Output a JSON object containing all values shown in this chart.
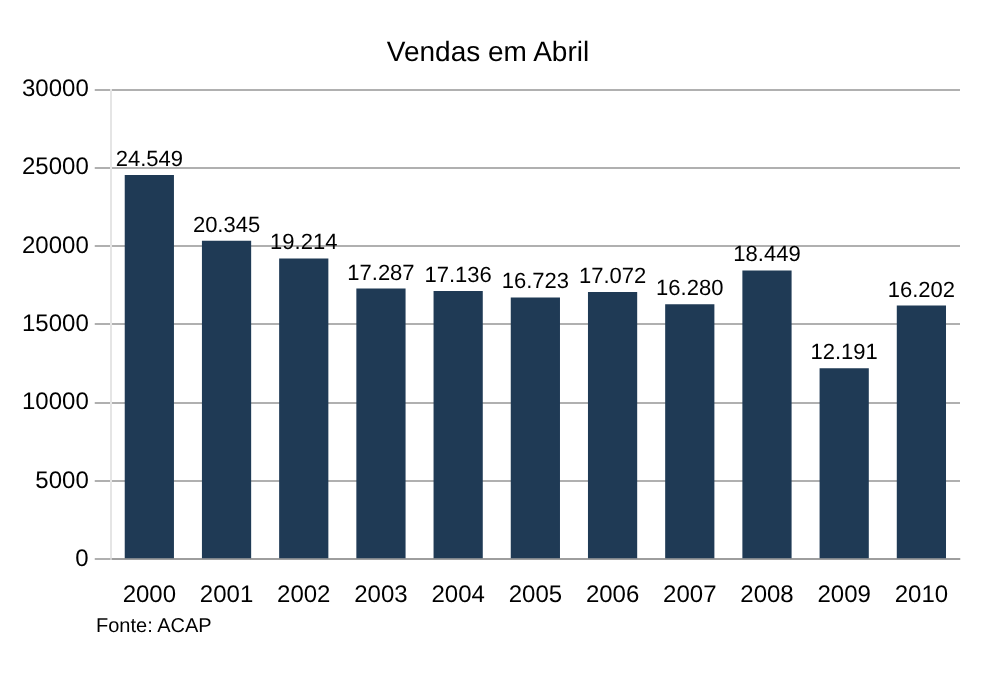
{
  "chart_data": {
    "type": "bar",
    "title": "Vendas em Abril",
    "categories": [
      "2000",
      "2001",
      "2002",
      "2003",
      "2004",
      "2005",
      "2006",
      "2007",
      "2008",
      "2009",
      "2010"
    ],
    "values": [
      24549,
      20345,
      19214,
      17287,
      17136,
      16723,
      17072,
      16280,
      18449,
      12191,
      16202
    ],
    "value_labels": [
      "24.549",
      "20.345",
      "19.214",
      "17.287",
      "17.136",
      "16.723",
      "17.072",
      "16.280",
      "18.449",
      "12.191",
      "16.202"
    ],
    "color": "#1f3a55",
    "ylim": [
      0,
      30000
    ],
    "yticks": [
      0,
      5000,
      10000,
      15000,
      20000,
      25000,
      30000
    ],
    "grid": "y",
    "annotations": [
      "Fonte: ACAP"
    ]
  }
}
